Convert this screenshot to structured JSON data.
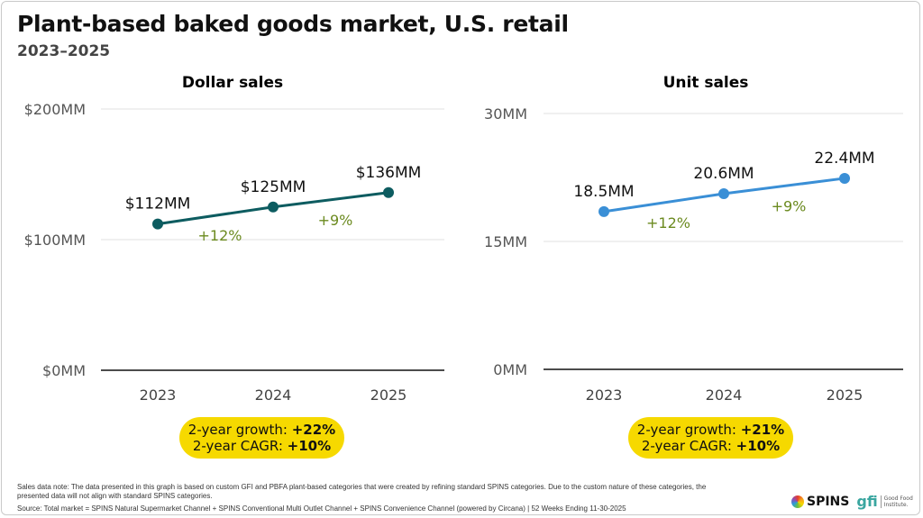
{
  "title": "Plant-based baked goods market, U.S. retail",
  "subtitle": "2023–2025",
  "chart_data": [
    {
      "type": "line",
      "title": "Dollar sales",
      "categories": [
        "2023",
        "2024",
        "2025"
      ],
      "values": [
        112,
        125,
        136
      ],
      "data_labels": [
        "$112MM",
        "$125MM",
        "$136MM"
      ],
      "growth_labels": [
        "+12%",
        "+9%"
      ],
      "ylim": [
        0,
        200
      ],
      "yticks": [
        0,
        100,
        200
      ],
      "ytick_labels": [
        "$0MM",
        "$100MM",
        "$200MM"
      ],
      "grid": true,
      "color": "#0d5c60",
      "summary": {
        "growth_label": "2-year growth:",
        "growth_value": "+22%",
        "cagr_label": "2-year CAGR:",
        "cagr_value": "+10%"
      }
    },
    {
      "type": "line",
      "title": "Unit sales",
      "categories": [
        "2023",
        "2024",
        "2025"
      ],
      "values": [
        18.5,
        20.6,
        22.4
      ],
      "data_labels": [
        "18.5MM",
        "20.6MM",
        "22.4MM"
      ],
      "growth_labels": [
        "+12%",
        "+9%"
      ],
      "ylim": [
        0,
        30
      ],
      "yticks": [
        0,
        15,
        30
      ],
      "ytick_labels": [
        "0MM",
        "15MM",
        "30MM"
      ],
      "grid": true,
      "color": "#3a8fd6",
      "summary": {
        "growth_label": "2-year growth:",
        "growth_value": "+21%",
        "cagr_label": "2-year CAGR:",
        "cagr_value": "+10%"
      }
    }
  ],
  "colors": {
    "growth_text": "#6b8a1f",
    "pill": "#f6d900"
  },
  "footer": {
    "note": "Sales data note: The data presented in this graph is based on custom GFI and PBFA plant-based categories that were created by refining standard SPINS categories. Due to the custom nature of these categories, the presented data will not align with standard SPINS categories.",
    "source": "Source: Total market = SPINS Natural Supermarket Channel + SPINS Conventional Multi Outlet Channel + SPINS Convenience Channel (powered by Circana) | 52 Weeks Ending 11-30-2025"
  },
  "logos": {
    "spins": "SPINS",
    "gfi": "gfi",
    "gfi_name": "Good Food Institute."
  }
}
